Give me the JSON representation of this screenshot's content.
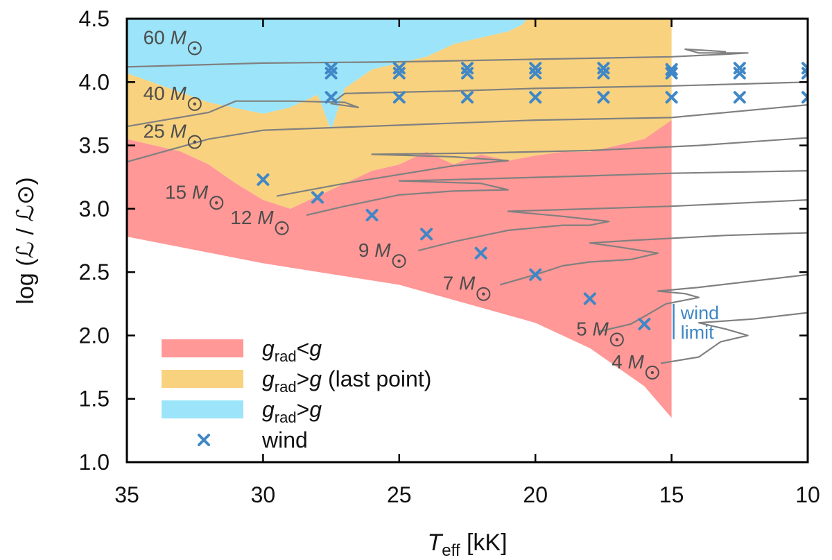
{
  "chart_data": {
    "type": "area",
    "xlabel": {
      "main": "T",
      "sub": "eff",
      "unit": " [kK]"
    },
    "ylabel": "log (ℒ / ℒ⊙)",
    "xlim": [
      35,
      10
    ],
    "ylim": [
      1.0,
      4.5
    ],
    "x_ticks": [
      "35",
      "30",
      "25",
      "20",
      "15",
      "10"
    ],
    "y_ticks": [
      "1.0",
      "1.5",
      "2.0",
      "2.5",
      "3.0",
      "3.5",
      "4.0",
      "4.5"
    ],
    "colors": {
      "red": "#ff9896",
      "orange": "#f8d27f",
      "blue": "#9ce4f9",
      "wind": "#3f87c6",
      "track": "#808080"
    },
    "regions": [
      {
        "name": "blue",
        "polygon": [
          [
            35,
            4.5
          ],
          [
            35,
            4.07
          ],
          [
            32,
            3.84
          ],
          [
            30,
            3.75
          ],
          [
            29,
            3.8
          ],
          [
            28,
            3.9
          ],
          [
            27.5,
            3.62
          ],
          [
            27,
            3.95
          ],
          [
            26,
            4.1
          ],
          [
            25,
            4.15
          ],
          [
            24,
            4.2
          ],
          [
            23,
            4.3
          ],
          [
            22,
            4.35
          ],
          [
            21,
            4.4
          ],
          [
            20.5,
            4.45
          ],
          [
            20.3,
            4.5
          ]
        ]
      },
      {
        "name": "orange",
        "polygon": [
          [
            35,
            4.07
          ],
          [
            32,
            3.84
          ],
          [
            30,
            3.75
          ],
          [
            29,
            3.8
          ],
          [
            28,
            3.9
          ],
          [
            27.5,
            3.62
          ],
          [
            27,
            3.95
          ],
          [
            26,
            4.1
          ],
          [
            25,
            4.15
          ],
          [
            24,
            4.2
          ],
          [
            23,
            4.3
          ],
          [
            22,
            4.35
          ],
          [
            21,
            4.4
          ],
          [
            20.5,
            4.45
          ],
          [
            20.3,
            4.5
          ],
          [
            15,
            4.5
          ],
          [
            15,
            3.6
          ],
          [
            16,
            3.55
          ],
          [
            17,
            3.5
          ],
          [
            18,
            3.45
          ],
          [
            19,
            3.45
          ],
          [
            20,
            3.42
          ],
          [
            21,
            3.38
          ],
          [
            22,
            3.43
          ],
          [
            23,
            3.35
          ],
          [
            24,
            3.45
          ],
          [
            25,
            3.35
          ],
          [
            26,
            3.3
          ],
          [
            27,
            3.2
          ],
          [
            28,
            3.1
          ],
          [
            29,
            3.0
          ],
          [
            30,
            3.07
          ],
          [
            31,
            3.2
          ],
          [
            32,
            3.35
          ],
          [
            33,
            3.45
          ],
          [
            35,
            3.55
          ]
        ]
      },
      {
        "name": "red",
        "polygon": [
          [
            35,
            3.55
          ],
          [
            33,
            3.45
          ],
          [
            32,
            3.35
          ],
          [
            31,
            3.2
          ],
          [
            30,
            3.07
          ],
          [
            29,
            3.0
          ],
          [
            28,
            3.1
          ],
          [
            27,
            3.2
          ],
          [
            26,
            3.3
          ],
          [
            25,
            3.35
          ],
          [
            24,
            3.45
          ],
          [
            23,
            3.35
          ],
          [
            22,
            3.43
          ],
          [
            21,
            3.38
          ],
          [
            20,
            3.42
          ],
          [
            19,
            3.45
          ],
          [
            18,
            3.45
          ],
          [
            17,
            3.5
          ],
          [
            16,
            3.55
          ],
          [
            15,
            3.7
          ],
          [
            15,
            1.35
          ],
          [
            16,
            1.6
          ],
          [
            18,
            1.9
          ],
          [
            20,
            2.1
          ],
          [
            25,
            2.4
          ],
          [
            30,
            2.57
          ],
          [
            35,
            2.78
          ]
        ]
      }
    ],
    "tracks": [
      {
        "label": "60",
        "points": [
          [
            35,
            4.12
          ],
          [
            30,
            4.15
          ],
          [
            25,
            4.16
          ],
          [
            20,
            4.18
          ],
          [
            15,
            4.2
          ],
          [
            13,
            4.22
          ],
          [
            12.2,
            4.23
          ],
          [
            14,
            4.23
          ],
          [
            14.5,
            4.26
          ],
          [
            13,
            4.24
          ]
        ]
      },
      {
        "label": "40",
        "points": [
          [
            35,
            3.65
          ],
          [
            32,
            3.76
          ],
          [
            31,
            3.85
          ],
          [
            29,
            3.85
          ],
          [
            27,
            3.84
          ],
          [
            26.5,
            3.8
          ],
          [
            27.5,
            3.83
          ],
          [
            27,
            3.91
          ],
          [
            23,
            3.93
          ],
          [
            20,
            3.95
          ],
          [
            15,
            3.97
          ],
          [
            10,
            4.0
          ]
        ]
      },
      {
        "label": "25",
        "points": [
          [
            35,
            3.37
          ],
          [
            32,
            3.55
          ],
          [
            30,
            3.62
          ],
          [
            25,
            3.66
          ],
          [
            20,
            3.7
          ],
          [
            15,
            3.72
          ],
          [
            10,
            3.82
          ]
        ]
      },
      {
        "label": "15",
        "points": [
          [
            29.5,
            3.1
          ],
          [
            27,
            3.2
          ],
          [
            23,
            3.34
          ],
          [
            21,
            3.38
          ],
          [
            23,
            3.41
          ],
          [
            26,
            3.43
          ],
          [
            22,
            3.44
          ],
          [
            18,
            3.46
          ],
          [
            14,
            3.5
          ],
          [
            10,
            3.56
          ]
        ]
      },
      {
        "label": "12",
        "points": [
          [
            28.4,
            2.95
          ],
          [
            27,
            3.02
          ],
          [
            25,
            3.11
          ],
          [
            23,
            3.14
          ],
          [
            21,
            3.15
          ],
          [
            22,
            3.2
          ],
          [
            25,
            3.22
          ],
          [
            23,
            3.23
          ],
          [
            18,
            3.26
          ],
          [
            15,
            3.28
          ],
          [
            10,
            3.3
          ]
        ]
      },
      {
        "label": "9",
        "points": [
          [
            24.3,
            2.67
          ],
          [
            23,
            2.74
          ],
          [
            21,
            2.83
          ],
          [
            19,
            2.87
          ],
          [
            18,
            2.87
          ],
          [
            17.3,
            2.9
          ],
          [
            19,
            2.94
          ],
          [
            21,
            2.98
          ],
          [
            18,
            3.0
          ],
          [
            15,
            3.02
          ],
          [
            10,
            3.07
          ]
        ]
      },
      {
        "label": "7",
        "points": [
          [
            21.3,
            2.4
          ],
          [
            20,
            2.48
          ],
          [
            19,
            2.55
          ],
          [
            18,
            2.58
          ],
          [
            16.5,
            2.6
          ],
          [
            15.5,
            2.65
          ],
          [
            17,
            2.7
          ],
          [
            18,
            2.73
          ],
          [
            16.5,
            2.75
          ],
          [
            13,
            2.79
          ],
          [
            10,
            2.81
          ]
        ]
      },
      {
        "label": "5",
        "points": [
          [
            17.7,
            2.03
          ],
          [
            16.5,
            2.09
          ],
          [
            16,
            2.15
          ],
          [
            15.2,
            2.25
          ],
          [
            14,
            2.3
          ],
          [
            14.5,
            2.33
          ],
          [
            15.5,
            2.35
          ],
          [
            14,
            2.38
          ],
          [
            10,
            2.48
          ]
        ]
      },
      {
        "label": "4",
        "points": [
          [
            15.4,
            1.78
          ],
          [
            14,
            1.83
          ],
          [
            13.2,
            1.95
          ],
          [
            12.2,
            2.0
          ],
          [
            13,
            2.05
          ],
          [
            14,
            2.1
          ],
          [
            12,
            2.13
          ],
          [
            10,
            2.18
          ]
        ]
      }
    ],
    "track_labels": [
      {
        "num": "60",
        "unit": "M",
        "x": 34.4,
        "y": 4.3
      },
      {
        "num": "40",
        "unit": "M",
        "x": 34.4,
        "y": 3.86
      },
      {
        "num": "25",
        "unit": "M",
        "x": 34.4,
        "y": 3.56
      },
      {
        "num": "15",
        "unit": "M",
        "x": 33.6,
        "y": 3.08
      },
      {
        "num": "12",
        "unit": "M",
        "x": 31.2,
        "y": 2.88
      },
      {
        "num": "9",
        "unit": "M",
        "x": 26.5,
        "y": 2.62
      },
      {
        "num": "7",
        "unit": "M",
        "x": 23.4,
        "y": 2.36
      },
      {
        "num": "5",
        "unit": "M",
        "x": 18.5,
        "y": 2.0
      },
      {
        "num": "4",
        "unit": "M",
        "x": 17.2,
        "y": 1.74
      }
    ],
    "wind": [
      [
        27.5,
        4.11
      ],
      [
        25,
        4.11
      ],
      [
        22.5,
        4.11
      ],
      [
        20,
        4.11
      ],
      [
        17.5,
        4.11
      ],
      [
        15,
        4.1
      ],
      [
        12.5,
        4.11
      ],
      [
        10,
        4.11
      ],
      [
        27.5,
        4.07
      ],
      [
        25,
        4.07
      ],
      [
        22.5,
        4.07
      ],
      [
        20,
        4.07
      ],
      [
        17.5,
        4.07
      ],
      [
        15,
        4.07
      ],
      [
        12.5,
        4.07
      ],
      [
        10,
        4.07
      ],
      [
        27.5,
        3.88
      ],
      [
        25,
        3.88
      ],
      [
        22.5,
        3.88
      ],
      [
        20,
        3.88
      ],
      [
        17.5,
        3.88
      ],
      [
        15,
        3.88
      ],
      [
        12.5,
        3.88
      ],
      [
        10,
        3.88
      ],
      [
        30,
        3.23
      ],
      [
        28,
        3.09
      ],
      [
        26,
        2.95
      ],
      [
        24,
        2.8
      ],
      [
        22,
        2.65
      ],
      [
        20,
        2.48
      ],
      [
        18,
        2.29
      ],
      [
        16,
        2.09
      ]
    ],
    "wind_limit": {
      "x": 15.0,
      "y_from": 1.97,
      "y_to": 2.25,
      "text_line1": "wind",
      "text_line2": "limit"
    },
    "legend": [
      {
        "key": "red",
        "main": "g",
        "sub": "rad",
        "rest": "<",
        "rest_italic": "g",
        "suffix": ""
      },
      {
        "key": "orange",
        "main": "g",
        "sub": "rad",
        "rest": ">",
        "rest_italic": "g",
        "suffix": " (last point)"
      },
      {
        "key": "blue",
        "main": "g",
        "sub": "rad",
        "rest": ">",
        "rest_italic": "g",
        "suffix": ""
      },
      {
        "key": "wind",
        "main": "",
        "sub": "",
        "rest": "",
        "rest_italic": "",
        "suffix": "wind"
      }
    ],
    "legend_position": "bottom-left",
    "grid": false
  }
}
